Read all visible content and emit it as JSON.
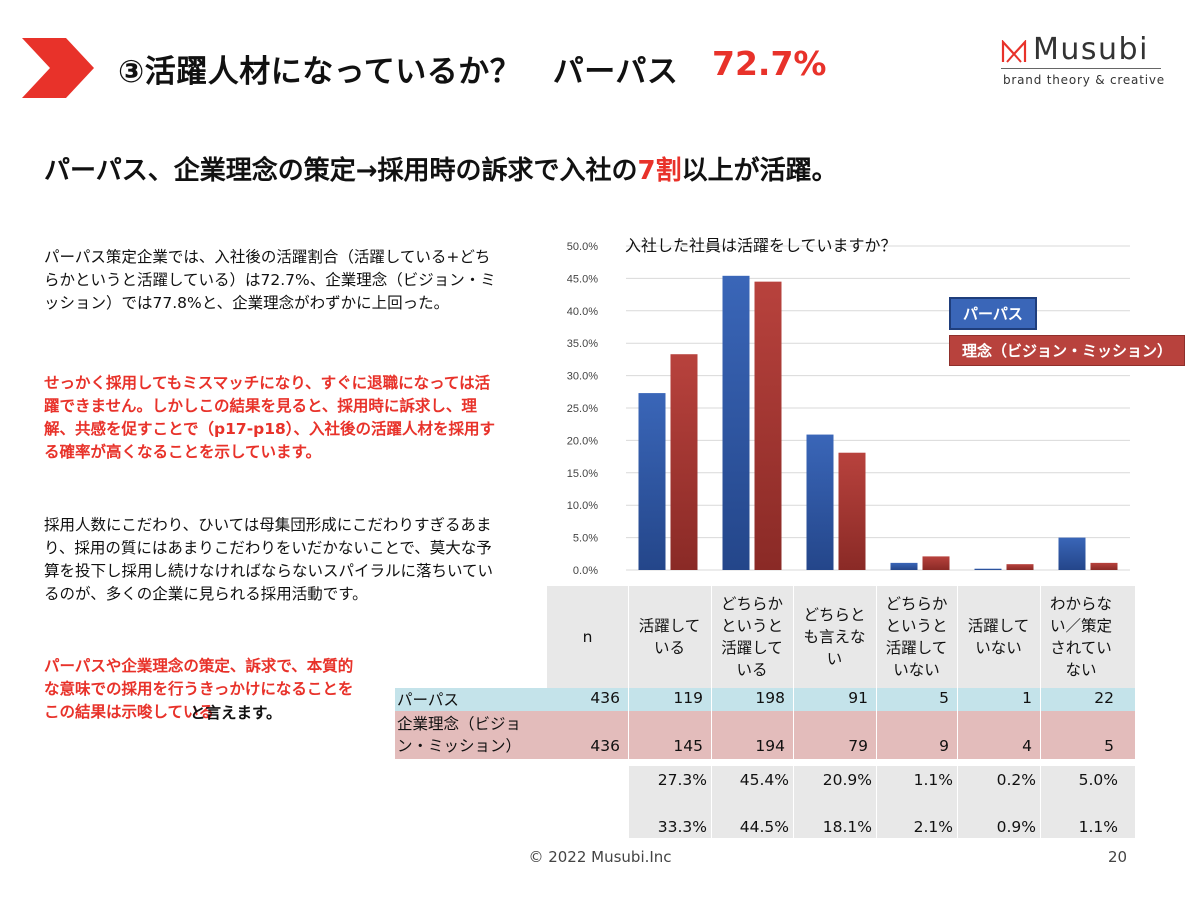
{
  "header": {
    "title": "③活躍人材になっているか？　パーパス",
    "title_pct": "72.7%",
    "accent_color": "#e8322a"
  },
  "brand": {
    "name": "Musubi",
    "tagline": "brand theory & creative",
    "logo_icon": "musubi-m-logo-icon"
  },
  "subhead": {
    "part1": "パーパス、企業理念の策定→採用時の訴求で入社の",
    "highlight": "7割",
    "part2": "以上が活躍。"
  },
  "body": {
    "p1": "パーパス策定企業では、入社後の活躍割合（活躍している+どちらかというと活躍している）は72.7%、企業理念（ビジョン・ミッション）では77.8%と、企業理念がわずかに上回った。",
    "p2": "せっかく採用してもミスマッチになり、すぐに退職になっては活躍できません。しかしこの結果を見ると、採用時に訴求し、理解、共感を促すことで（p17-p18）、入社後の活躍人材を採用する確率が高くなることを示しています。",
    "p3": "採用人数にこだわり、ひいては母集団形成にこだわりすぎるあまり、採用の質にはあまりこだわりをいだかないことで、莫大な予算を投下し採用し続けなければならないスパイラルに落ちいているのが、多くの企業に見られる採用活動です。",
    "p4": "パーパスや企業理念の策定、訴求で、本質的な意味での採用を行うきっかけになることをこの結果は示唆している",
    "p4_tail": "と言えます。"
  },
  "chart_data": {
    "type": "bar",
    "title": "入社した社員は活躍をしていますか？",
    "categories": [
      "活躍している",
      "どちらかというと活躍している",
      "どちらとも言えない",
      "どちらかというと活躍していない",
      "活躍していない",
      "わからない／策定されていない"
    ],
    "series": [
      {
        "name": "パーパス",
        "values": [
          27.3,
          45.4,
          20.9,
          1.1,
          0.2,
          5.0
        ],
        "color": "#3a66b8"
      },
      {
        "name": "理念（ビジョン・ミッション）",
        "values": [
          33.3,
          44.5,
          18.1,
          2.1,
          0.9,
          1.1
        ],
        "color": "#b8423d"
      }
    ],
    "yticks": [
      "0.0%",
      "5.0%",
      "10.0%",
      "15.0%",
      "20.0%",
      "25.0%",
      "30.0%",
      "35.0%",
      "40.0%",
      "45.0%",
      "50.0%"
    ],
    "ylim": [
      0,
      50
    ],
    "grid": true,
    "legend": "right"
  },
  "table": {
    "headers": [
      "n",
      "活躍している",
      "どちらかというと活躍している",
      "どちらとも言えない",
      "どちらかというと活躍していない",
      "活躍していない",
      "わからない／策定されていない"
    ],
    "header_lines": [
      [
        "n"
      ],
      [
        "活躍して",
        "いる"
      ],
      [
        "どちらか",
        "というと",
        "活躍して",
        "いる"
      ],
      [
        "どちらと",
        "も言えな",
        "い"
      ],
      [
        "どちらか",
        "というと",
        "活躍して",
        "いない"
      ],
      [
        "活躍して",
        "いない"
      ],
      [
        "わからな",
        "い／策定",
        "されてい",
        "ない"
      ]
    ],
    "rows": [
      {
        "label": "パーパス",
        "values": [
          "436",
          "119",
          "198",
          "91",
          "5",
          "1",
          "22"
        ]
      },
      {
        "label": "企業理念（ビジョン・ミッション）",
        "label_lines": [
          "企業理念（ビジョ",
          "ン・ミッション）"
        ],
        "values": [
          "436",
          "145",
          "194",
          "79",
          "9",
          "4",
          "5"
        ]
      }
    ],
    "pct_rows": [
      [
        "27.3%",
        "45.4%",
        "20.9%",
        "1.1%",
        "0.2%",
        "5.0%"
      ],
      [
        "33.3%",
        "44.5%",
        "18.1%",
        "2.1%",
        "0.9%",
        "1.1%"
      ]
    ]
  },
  "footer": {
    "copyright": "© 2022 Musubi.Inc",
    "page": "20"
  }
}
